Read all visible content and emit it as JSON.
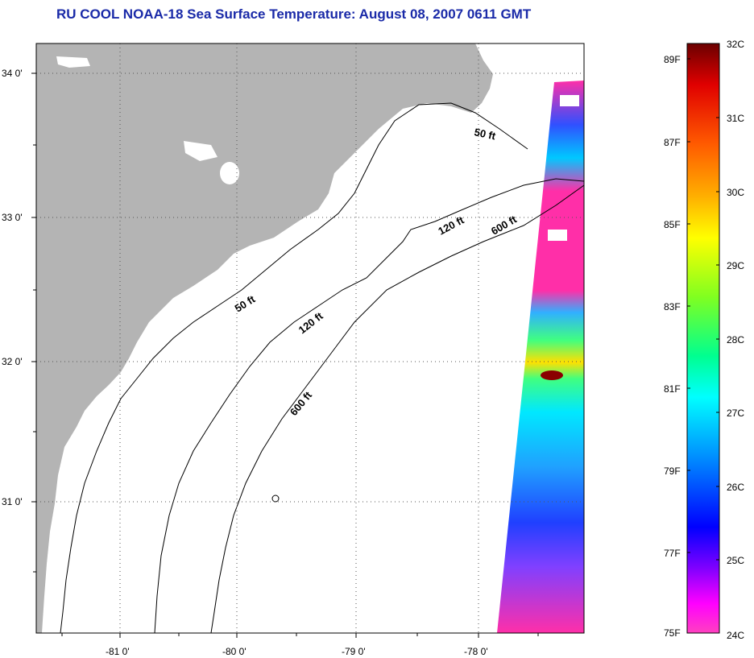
{
  "title": "RU COOL  NOAA-18  Sea Surface Temperature:  August 08, 2007 0611 GMT",
  "map": {
    "lat_ticks": [
      "34 0'",
      "33 0'",
      "32 0'",
      "31 0'"
    ],
    "lon_ticks": [
      "-81 0'",
      "-80 0'",
      "-79 0'",
      "-78 0'"
    ],
    "contours": [
      {
        "label": "50 ft",
        "id": "a"
      },
      {
        "label": "50 ft",
        "id": "b"
      },
      {
        "label": "120 ft",
        "id": "c"
      },
      {
        "label": "120 ft",
        "id": "d"
      },
      {
        "label": "600 ft",
        "id": "e"
      },
      {
        "label": "600 ft",
        "id": "f"
      }
    ],
    "colors": {
      "land": "#b4b4b4",
      "water": "#ffffff",
      "no_data": "#ffffff"
    }
  },
  "colorbar": {
    "fahrenheit": [
      "89F",
      "87F",
      "85F",
      "83F",
      "81F",
      "79F",
      "77F",
      "75F"
    ],
    "celsius": [
      "32C",
      "31C",
      "30C",
      "29C",
      "28C",
      "27C",
      "26C",
      "25C",
      "24C"
    ],
    "gradient": [
      "#800000",
      "#e00000",
      "#ff6000",
      "#ffb000",
      "#ffff00",
      "#80ff00",
      "#00ff80",
      "#00ffff",
      "#00a0ff",
      "#0040ff",
      "#0000ff",
      "#8000ff",
      "#ff00ff",
      "#ff40c0"
    ]
  }
}
